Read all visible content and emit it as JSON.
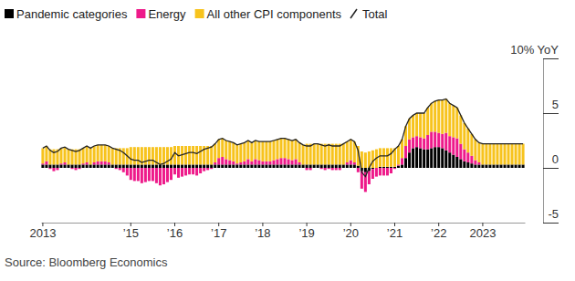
{
  "chart_data": {
    "type": "bar",
    "stacked": true,
    "legend": "top-left",
    "grid": false,
    "source": "Source: Bloomberg Economics",
    "ylim": [
      -5,
      10
    ],
    "yticks": [
      -5,
      0,
      5,
      {
        "value": 10,
        "label": "10% YoY"
      }
    ],
    "categories": [
      "2013",
      null,
      null,
      null,
      null,
      null,
      null,
      null,
      null,
      null,
      null,
      null,
      null,
      null,
      null,
      null,
      null,
      null,
      null,
      null,
      null,
      null,
      null,
      null,
      "’15",
      null,
      null,
      null,
      null,
      null,
      null,
      null,
      null,
      null,
      null,
      null,
      "’16",
      null,
      null,
      null,
      null,
      null,
      null,
      null,
      null,
      null,
      null,
      null,
      "’17",
      null,
      null,
      null,
      null,
      null,
      null,
      null,
      null,
      null,
      null,
      null,
      "’18",
      null,
      null,
      null,
      null,
      null,
      null,
      null,
      null,
      null,
      null,
      null,
      "’19",
      null,
      null,
      null,
      null,
      null,
      null,
      null,
      null,
      null,
      null,
      null,
      "’20",
      null,
      null,
      null,
      null,
      null,
      null,
      null,
      null,
      null,
      null,
      null,
      "’21",
      null,
      null,
      null,
      null,
      null,
      null,
      null,
      null,
      null,
      null,
      null,
      "’22",
      null,
      null,
      null,
      null,
      null,
      null,
      null,
      null,
      null,
      null,
      null,
      "2023",
      null,
      null,
      null,
      null,
      null,
      null,
      null,
      null,
      null,
      null,
      null
    ],
    "series": [
      {
        "name": "Pandemic categories",
        "color": "#000000",
        "values": [
          0.3,
          0.3,
          0.3,
          0.3,
          0.3,
          0.3,
          0.3,
          0.3,
          0.3,
          0.3,
          0.3,
          0.3,
          0.3,
          0.3,
          0.3,
          0.3,
          0.3,
          0.3,
          0.3,
          0.3,
          0.3,
          0.3,
          0.3,
          0.3,
          0.3,
          0.3,
          0.3,
          0.3,
          0.3,
          0.3,
          0.3,
          0.3,
          0.3,
          0.3,
          0.3,
          0.3,
          0.3,
          0.3,
          0.3,
          0.3,
          0.3,
          0.3,
          0.3,
          0.3,
          0.3,
          0.3,
          0.3,
          0.3,
          0.3,
          0.3,
          0.3,
          0.3,
          0.3,
          0.3,
          0.3,
          0.3,
          0.3,
          0.3,
          0.3,
          0.3,
          0.3,
          0.3,
          0.3,
          0.3,
          0.3,
          0.3,
          0.3,
          0.3,
          0.3,
          0.3,
          0.3,
          0.3,
          0.3,
          0.3,
          0.3,
          0.3,
          0.3,
          0.3,
          0.3,
          0.3,
          0.3,
          0.3,
          0.3,
          0.3,
          0.3,
          0.3,
          0.2,
          -0.3,
          -0.4,
          -0.3,
          -0.1,
          0.0,
          0.1,
          0.1,
          0.1,
          0.1,
          0.1,
          0.2,
          0.3,
          0.9,
          1.4,
          1.8,
          1.9,
          1.8,
          1.7,
          1.7,
          1.8,
          1.9,
          1.9,
          1.8,
          1.6,
          1.4,
          1.2,
          1.0,
          0.8,
          0.6,
          0.5,
          0.4,
          0.3,
          0.3,
          0.3,
          0.3,
          0.3,
          0.3,
          0.3,
          0.3,
          0.3,
          0.3,
          0.3,
          0.3,
          0.3,
          0.3
        ]
      },
      {
        "name": "Energy",
        "color": "#ee1a8a",
        "values": [
          0.1,
          0.3,
          -0.1,
          -0.3,
          -0.2,
          0.1,
          0.2,
          0.0,
          -0.1,
          -0.2,
          -0.1,
          0.1,
          0.2,
          0.0,
          0.2,
          0.3,
          0.3,
          0.3,
          0.2,
          0.0,
          -0.1,
          -0.2,
          -0.4,
          -0.7,
          -1.1,
          -1.2,
          -1.2,
          -1.4,
          -1.3,
          -1.2,
          -1.2,
          -1.4,
          -1.6,
          -1.5,
          -1.3,
          -1.1,
          -0.6,
          -0.9,
          -0.8,
          -0.7,
          -0.6,
          -0.6,
          -0.7,
          -0.5,
          -0.3,
          -0.2,
          -0.1,
          0.2,
          0.6,
          0.7,
          0.5,
          0.4,
          0.3,
          0.1,
          0.2,
          0.3,
          0.5,
          0.3,
          0.5,
          0.4,
          0.3,
          0.3,
          0.3,
          0.4,
          0.5,
          0.6,
          0.6,
          0.5,
          0.4,
          0.5,
          0.2,
          0.0,
          -0.2,
          -0.2,
          0.0,
          0.0,
          -0.1,
          -0.2,
          -0.1,
          -0.2,
          -0.2,
          -0.2,
          0.0,
          0.2,
          0.4,
          0.2,
          -0.4,
          -1.6,
          -1.8,
          -1.2,
          -0.9,
          -0.8,
          -0.7,
          -0.7,
          -0.7,
          -0.5,
          -0.1,
          0.1,
          0.6,
          1.1,
          1.2,
          1.0,
          1.0,
          1.0,
          1.0,
          1.3,
          1.5,
          1.4,
          1.3,
          1.3,
          1.6,
          1.5,
          1.6,
          1.7,
          1.4,
          1.1,
          0.9,
          0.7,
          0.4,
          0.2,
          0.0,
          0.0,
          0.0,
          0.0,
          0.0,
          0.0,
          0.0,
          0.0,
          0.0,
          0.0,
          0.0,
          0.0
        ]
      },
      {
        "name": "All other CPI components",
        "color": "#f7c31d",
        "values": [
          1.4,
          1.4,
          1.4,
          1.4,
          1.4,
          1.4,
          1.4,
          1.4,
          1.4,
          1.4,
          1.4,
          1.4,
          1.5,
          1.5,
          1.5,
          1.5,
          1.5,
          1.5,
          1.5,
          1.5,
          1.5,
          1.5,
          1.5,
          1.5,
          1.6,
          1.6,
          1.6,
          1.6,
          1.6,
          1.6,
          1.6,
          1.6,
          1.6,
          1.6,
          1.6,
          1.6,
          1.7,
          1.7,
          1.7,
          1.7,
          1.7,
          1.7,
          1.7,
          1.7,
          1.7,
          1.7,
          1.7,
          1.7,
          1.7,
          1.7,
          1.7,
          1.7,
          1.7,
          1.7,
          1.7,
          1.7,
          1.7,
          1.7,
          1.7,
          1.7,
          1.8,
          1.8,
          1.8,
          1.8,
          1.8,
          1.8,
          1.8,
          1.8,
          1.8,
          1.8,
          1.8,
          1.8,
          1.9,
          1.9,
          1.9,
          1.9,
          1.9,
          1.9,
          1.9,
          1.9,
          1.9,
          1.9,
          1.9,
          1.9,
          1.9,
          1.9,
          1.8,
          1.5,
          1.4,
          1.5,
          1.6,
          1.7,
          1.7,
          1.7,
          1.7,
          1.7,
          1.7,
          1.7,
          1.7,
          1.8,
          1.9,
          2.0,
          2.1,
          2.2,
          2.3,
          2.5,
          2.6,
          2.8,
          3.0,
          3.1,
          3.1,
          3.0,
          2.9,
          2.8,
          2.6,
          2.4,
          2.2,
          2.0,
          1.9,
          1.8,
          1.9,
          1.9,
          1.9,
          1.9,
          1.9,
          1.9,
          1.9,
          1.9,
          1.9,
          1.9,
          1.9,
          1.9
        ]
      },
      {
        "name": "Total",
        "type": "line",
        "color": "#222222",
        "values": [
          1.8,
          2.0,
          1.6,
          1.4,
          1.5,
          1.8,
          1.9,
          1.7,
          1.6,
          1.5,
          1.6,
          1.8,
          2.0,
          1.8,
          2.0,
          2.1,
          2.1,
          2.1,
          2.0,
          1.8,
          1.7,
          1.6,
          1.4,
          1.1,
          0.8,
          0.7,
          0.7,
          0.5,
          0.6,
          0.7,
          0.7,
          0.5,
          0.3,
          0.4,
          0.6,
          0.8,
          1.4,
          1.1,
          1.2,
          1.3,
          1.4,
          1.4,
          1.3,
          1.5,
          1.7,
          1.8,
          1.9,
          2.2,
          2.6,
          2.7,
          2.5,
          2.4,
          2.3,
          2.1,
          2.2,
          2.3,
          2.5,
          2.3,
          2.5,
          2.4,
          2.4,
          2.4,
          2.4,
          2.5,
          2.6,
          2.7,
          2.7,
          2.6,
          2.5,
          2.6,
          2.3,
          2.1,
          2.0,
          2.0,
          2.2,
          2.2,
          2.1,
          2.0,
          2.1,
          2.0,
          2.0,
          2.0,
          2.2,
          2.4,
          2.6,
          2.4,
          1.6,
          -0.4,
          -0.8,
          0.0,
          0.6,
          0.9,
          1.1,
          1.1,
          1.1,
          1.3,
          1.7,
          2.0,
          2.6,
          3.8,
          4.5,
          4.8,
          5.0,
          5.0,
          5.0,
          5.5,
          5.9,
          6.1,
          6.2,
          6.2,
          6.3,
          5.9,
          5.7,
          5.5,
          4.8,
          4.1,
          3.6,
          3.1,
          2.6,
          2.3,
          2.2,
          2.2,
          2.2,
          2.2,
          2.2,
          2.2,
          2.2,
          2.2,
          2.2,
          2.2,
          2.2,
          2.2
        ]
      }
    ]
  }
}
